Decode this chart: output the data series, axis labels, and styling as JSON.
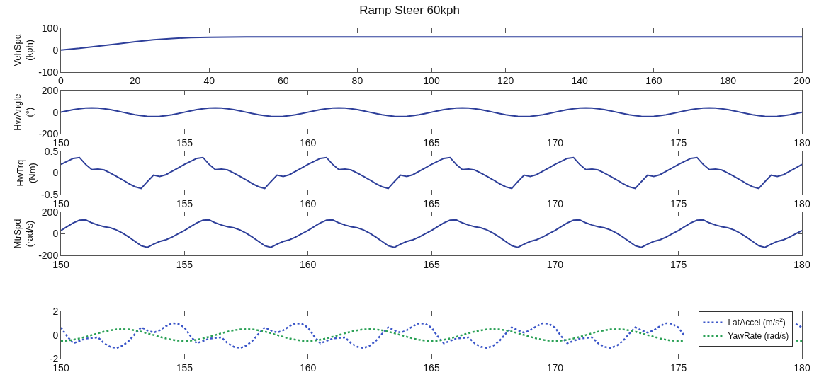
{
  "chart_data": [
    {
      "type": "line",
      "title": "Ramp Steer 60kph",
      "ylabel": "VehSpd\n(kph)",
      "line_style": "solid",
      "legend": false,
      "grid": false,
      "x": [
        0,
        5,
        10,
        15,
        20,
        25,
        30,
        35,
        40,
        50,
        60,
        80,
        100,
        120,
        140,
        160,
        180,
        200
      ],
      "series": [
        {
          "color": "#2e3f9a",
          "values": [
            0,
            8,
            18,
            28,
            38,
            47,
            53,
            57,
            59,
            60,
            60,
            60,
            60,
            60,
            60,
            60,
            60,
            60
          ]
        }
      ],
      "xlim": [
        0,
        200
      ],
      "xticks": [
        0,
        20,
        40,
        60,
        80,
        100,
        120,
        140,
        160,
        180,
        200
      ],
      "ylim": [
        -100,
        100
      ],
      "yticks": [
        -100,
        0,
        100
      ]
    },
    {
      "type": "line",
      "ylabel": "HwAngle\n(°)",
      "line_style": "solid",
      "legend": false,
      "grid": false,
      "x": [
        150,
        150.25,
        150.5,
        150.75,
        151,
        151.25,
        151.5,
        151.75,
        152,
        152.25,
        152.5,
        152.75,
        153,
        153.25,
        153.5,
        153.75,
        154,
        154.25,
        154.5,
        154.75,
        155,
        155.25,
        155.5,
        155.75,
        156,
        156.25,
        156.5,
        156.75,
        157,
        157.25,
        157.5,
        157.75,
        158,
        158.25,
        158.5,
        158.75,
        159,
        159.25,
        159.5,
        159.75,
        160,
        160.25,
        160.5,
        160.75,
        161,
        161.25,
        161.5,
        161.75,
        162,
        162.25,
        162.5,
        162.75,
        163,
        163.25,
        163.5,
        163.75,
        164,
        164.25,
        164.5,
        164.75,
        165,
        165.25,
        165.5,
        165.75,
        166,
        166.25,
        166.5,
        166.75,
        167,
        167.25,
        167.5,
        167.75,
        168,
        168.25,
        168.5,
        168.75,
        169,
        169.25,
        169.5,
        169.75,
        170,
        170.25,
        170.5,
        170.75,
        171,
        171.25,
        171.5,
        171.75,
        172,
        172.25,
        172.5,
        172.75,
        173,
        173.25,
        173.5,
        173.75,
        174,
        174.25,
        174.5,
        174.75,
        175,
        175.25,
        175.5,
        175.75,
        176,
        176.25,
        176.5,
        176.75,
        177,
        177.25,
        177.5,
        177.75,
        178,
        178.25,
        178.5,
        178.75,
        179,
        179.25,
        179.5,
        179.75,
        180
      ],
      "series": [
        {
          "color": "#2e3f9a",
          "values": [
            0,
            12,
            24,
            32,
            38,
            40,
            38,
            32,
            24,
            12,
            0,
            -12,
            -24,
            -32,
            -38,
            -40,
            -38,
            -32,
            -24,
            -12,
            0,
            12,
            24,
            32,
            38,
            40,
            38,
            32,
            24,
            12,
            0,
            -12,
            -24,
            -32,
            -38,
            -40,
            -38,
            -32,
            -24,
            -12,
            0,
            12,
            24,
            32,
            38,
            40,
            38,
            32,
            24,
            12,
            0,
            -12,
            -24,
            -32,
            -38,
            -40,
            -38,
            -32,
            -24,
            -12,
            0,
            12,
            24,
            32,
            38,
            40,
            38,
            32,
            24,
            12,
            0,
            -12,
            -24,
            -32,
            -38,
            -40,
            -38,
            -32,
            -24,
            -12,
            0,
            12,
            24,
            32,
            38,
            40,
            38,
            32,
            24,
            12,
            0,
            -12,
            -24,
            -32,
            -38,
            -40,
            -38,
            -32,
            -24,
            -12,
            0,
            12,
            24,
            32,
            38,
            40,
            38,
            32,
            24,
            12,
            0,
            -12,
            -24,
            -32,
            -38,
            -40,
            -38,
            -32,
            -24,
            -12,
            0
          ]
        }
      ],
      "xlim": [
        150,
        180
      ],
      "xticks": [
        150,
        155,
        160,
        165,
        170,
        175,
        180
      ],
      "ylim": [
        -200,
        200
      ],
      "yticks": [
        -200,
        0,
        200
      ]
    },
    {
      "type": "line",
      "ylabel": "HwTrq\n(Nm)",
      "line_style": "solid",
      "legend": false,
      "grid": false,
      "x": [
        150,
        150.25,
        150.5,
        150.75,
        151,
        151.25,
        151.5,
        151.75,
        152,
        152.25,
        152.5,
        152.75,
        153,
        153.25,
        153.5,
        153.75,
        154,
        154.25,
        154.5,
        154.75,
        155,
        155.25,
        155.5,
        155.75,
        156,
        156.25,
        156.5,
        156.75,
        157,
        157.25,
        157.5,
        157.75,
        158,
        158.25,
        158.5,
        158.75,
        159,
        159.25,
        159.5,
        159.75,
        160,
        160.25,
        160.5,
        160.75,
        161,
        161.25,
        161.5,
        161.75,
        162,
        162.25,
        162.5,
        162.75,
        163,
        163.25,
        163.5,
        163.75,
        164,
        164.25,
        164.5,
        164.75,
        165,
        165.25,
        165.5,
        165.75,
        166,
        166.25,
        166.5,
        166.75,
        167,
        167.25,
        167.5,
        167.75,
        168,
        168.25,
        168.5,
        168.75,
        169,
        169.25,
        169.5,
        169.75,
        170,
        170.25,
        170.5,
        170.75,
        171,
        171.25,
        171.5,
        171.75,
        172,
        172.25,
        172.5,
        172.75,
        173,
        173.25,
        173.5,
        173.75,
        174,
        174.25,
        174.5,
        174.75,
        175,
        175.25,
        175.5,
        175.75,
        176,
        176.25,
        176.5,
        176.75,
        177,
        177.25,
        177.5,
        177.75,
        178,
        178.25,
        178.5,
        178.75,
        179,
        179.25,
        179.5,
        179.75,
        180
      ],
      "series": [
        {
          "color": "#2e3f9a",
          "values": [
            0.2,
            0.27,
            0.34,
            0.36,
            0.2,
            0.08,
            0.09,
            0.07,
            0.0,
            -0.08,
            -0.16,
            -0.25,
            -0.32,
            -0.36,
            -0.2,
            -0.05,
            -0.08,
            -0.04,
            0.04,
            0.12,
            0.2,
            0.27,
            0.34,
            0.36,
            0.2,
            0.08,
            0.09,
            0.07,
            0.0,
            -0.08,
            -0.16,
            -0.25,
            -0.32,
            -0.36,
            -0.2,
            -0.05,
            -0.08,
            -0.04,
            0.04,
            0.12,
            0.2,
            0.27,
            0.34,
            0.36,
            0.2,
            0.08,
            0.09,
            0.07,
            0.0,
            -0.08,
            -0.16,
            -0.25,
            -0.32,
            -0.36,
            -0.2,
            -0.05,
            -0.08,
            -0.04,
            0.04,
            0.12,
            0.2,
            0.27,
            0.34,
            0.36,
            0.2,
            0.08,
            0.09,
            0.07,
            0.0,
            -0.08,
            -0.16,
            -0.25,
            -0.32,
            -0.36,
            -0.2,
            -0.05,
            -0.08,
            -0.04,
            0.04,
            0.12,
            0.2,
            0.27,
            0.34,
            0.36,
            0.2,
            0.08,
            0.09,
            0.07,
            0.0,
            -0.08,
            -0.16,
            -0.25,
            -0.32,
            -0.36,
            -0.2,
            -0.05,
            -0.08,
            -0.04,
            0.04,
            0.12,
            0.2,
            0.27,
            0.34,
            0.36,
            0.2,
            0.08,
            0.09,
            0.07,
            0.0,
            -0.08,
            -0.16,
            -0.25,
            -0.32,
            -0.36,
            -0.2,
            -0.05,
            -0.08,
            -0.04,
            0.04,
            0.12,
            0.2
          ]
        }
      ],
      "xlim": [
        150,
        180
      ],
      "xticks": [
        150,
        155,
        160,
        165,
        170,
        175,
        180
      ],
      "ylim": [
        -0.5,
        0.5
      ],
      "yticks": [
        -0.5,
        0,
        0.5
      ]
    },
    {
      "type": "line",
      "ylabel": "MtrSpd\n(rad/s)",
      "line_style": "solid",
      "legend": false,
      "grid": false,
      "x": [
        150,
        150.25,
        150.5,
        150.75,
        151,
        151.25,
        151.5,
        151.75,
        152,
        152.25,
        152.5,
        152.75,
        153,
        153.25,
        153.5,
        153.75,
        154,
        154.25,
        154.5,
        154.75,
        155,
        155.25,
        155.5,
        155.75,
        156,
        156.25,
        156.5,
        156.75,
        157,
        157.25,
        157.5,
        157.75,
        158,
        158.25,
        158.5,
        158.75,
        159,
        159.25,
        159.5,
        159.75,
        160,
        160.25,
        160.5,
        160.75,
        161,
        161.25,
        161.5,
        161.75,
        162,
        162.25,
        162.5,
        162.75,
        163,
        163.25,
        163.5,
        163.75,
        164,
        164.25,
        164.5,
        164.75,
        165,
        165.25,
        165.5,
        165.75,
        166,
        166.25,
        166.5,
        166.75,
        167,
        167.25,
        167.5,
        167.75,
        168,
        168.25,
        168.5,
        168.75,
        169,
        169.25,
        169.5,
        169.75,
        170,
        170.25,
        170.5,
        170.75,
        171,
        171.25,
        171.5,
        171.75,
        172,
        172.25,
        172.5,
        172.75,
        173,
        173.25,
        173.5,
        173.75,
        174,
        174.25,
        174.5,
        174.75,
        175,
        175.25,
        175.5,
        175.75,
        176,
        176.25,
        176.5,
        176.75,
        177,
        177.25,
        177.5,
        177.75,
        178,
        178.25,
        178.5,
        178.75,
        179,
        179.25,
        179.5,
        179.75,
        180
      ],
      "series": [
        {
          "color": "#2e3f9a",
          "values": [
            30,
            65,
            100,
            125,
            128,
            100,
            80,
            65,
            55,
            35,
            5,
            -30,
            -70,
            -110,
            -125,
            -95,
            -70,
            -55,
            -30,
            0,
            30,
            65,
            100,
            125,
            128,
            100,
            80,
            65,
            55,
            35,
            5,
            -30,
            -70,
            -110,
            -125,
            -95,
            -70,
            -55,
            -30,
            0,
            30,
            65,
            100,
            125,
            128,
            100,
            80,
            65,
            55,
            35,
            5,
            -30,
            -70,
            -110,
            -125,
            -95,
            -70,
            -55,
            -30,
            0,
            30,
            65,
            100,
            125,
            128,
            100,
            80,
            65,
            55,
            35,
            5,
            -30,
            -70,
            -110,
            -125,
            -95,
            -70,
            -55,
            -30,
            0,
            30,
            65,
            100,
            125,
            128,
            100,
            80,
            65,
            55,
            35,
            5,
            -30,
            -70,
            -110,
            -125,
            -95,
            -70,
            -55,
            -30,
            0,
            30,
            65,
            100,
            125,
            128,
            100,
            80,
            65,
            55,
            35,
            5,
            -30,
            -70,
            -110,
            -125,
            -95,
            -70,
            -55,
            -30,
            0,
            30
          ]
        }
      ],
      "xlim": [
        150,
        180
      ],
      "xticks": [
        150,
        155,
        160,
        165,
        170,
        175,
        180
      ],
      "ylim": [
        -200,
        200
      ],
      "yticks": [
        -200,
        0,
        200
      ]
    },
    {
      "type": "line",
      "line_style": "dotted",
      "legend": "top right",
      "grid": false,
      "x": [
        150,
        150.25,
        150.5,
        150.75,
        151,
        151.25,
        151.5,
        151.75,
        152,
        152.25,
        152.5,
        152.75,
        153,
        153.25,
        153.5,
        153.75,
        154,
        154.25,
        154.5,
        154.75,
        155,
        155.25,
        155.5,
        155.75,
        156,
        156.25,
        156.5,
        156.75,
        157,
        157.25,
        157.5,
        157.75,
        158,
        158.25,
        158.5,
        158.75,
        159,
        159.25,
        159.5,
        159.75,
        160,
        160.25,
        160.5,
        160.75,
        161,
        161.25,
        161.5,
        161.75,
        162,
        162.25,
        162.5,
        162.75,
        163,
        163.25,
        163.5,
        163.75,
        164,
        164.25,
        164.5,
        164.75,
        165,
        165.25,
        165.5,
        165.75,
        166,
        166.25,
        166.5,
        166.75,
        167,
        167.25,
        167.5,
        167.75,
        168,
        168.25,
        168.5,
        168.75,
        169,
        169.25,
        169.5,
        169.75,
        170,
        170.25,
        170.5,
        170.75,
        171,
        171.25,
        171.5,
        171.75,
        172,
        172.25,
        172.5,
        172.75,
        173,
        173.25,
        173.5,
        173.75,
        174,
        174.25,
        174.5,
        174.75,
        175,
        175.25,
        175.5,
        175.75,
        176,
        176.25,
        176.5,
        176.75,
        177,
        177.25,
        177.5,
        177.75,
        178,
        178.25,
        178.5,
        178.75,
        179,
        179.25,
        179.5,
        179.75,
        180
      ],
      "series": [
        {
          "name": "LatAccel (m/s$^{2}$)",
          "color": "#3a55c8",
          "values": [
            0.64,
            -0.1,
            -0.7,
            -0.5,
            -0.3,
            -0.25,
            -0.2,
            -0.7,
            -1.0,
            -1.1,
            -0.9,
            -0.5,
            0.1,
            0.65,
            0.4,
            0.2,
            0.4,
            0.75,
            1.0,
            0.95,
            0.64,
            -0.1,
            -0.7,
            -0.5,
            -0.3,
            -0.25,
            -0.2,
            -0.7,
            -1.0,
            -1.1,
            -0.9,
            -0.5,
            0.1,
            0.65,
            0.4,
            0.2,
            0.4,
            0.75,
            1.0,
            0.95,
            0.64,
            -0.1,
            -0.7,
            -0.5,
            -0.3,
            -0.25,
            -0.2,
            -0.7,
            -1.0,
            -1.1,
            -0.9,
            -0.5,
            0.1,
            0.65,
            0.4,
            0.2,
            0.4,
            0.75,
            1.0,
            0.95,
            0.64,
            -0.1,
            -0.7,
            -0.5,
            -0.3,
            -0.25,
            -0.2,
            -0.7,
            -1.0,
            -1.1,
            -0.9,
            -0.5,
            0.1,
            0.65,
            0.4,
            0.2,
            0.4,
            0.75,
            1.0,
            0.95,
            0.64,
            -0.1,
            -0.7,
            -0.5,
            -0.3,
            -0.25,
            -0.2,
            -0.7,
            -1.0,
            -1.1,
            -0.9,
            -0.5,
            0.1,
            0.65,
            0.4,
            0.2,
            0.4,
            0.75,
            1.0,
            0.95,
            0.64,
            -0.1,
            null,
            null,
            null,
            null,
            null,
            null,
            null,
            null,
            null,
            null,
            null,
            null,
            null,
            null,
            null,
            null,
            null,
            0.95,
            0.64
          ]
        },
        {
          "name": "YawRate (rad/s)",
          "color": "#2aa055",
          "values": [
            -0.5,
            -0.48,
            -0.4,
            -0.29,
            -0.15,
            0,
            0.15,
            0.29,
            0.4,
            0.48,
            0.5,
            0.48,
            0.4,
            0.29,
            0.15,
            0,
            -0.15,
            -0.29,
            -0.4,
            -0.48,
            -0.5,
            -0.48,
            -0.4,
            -0.29,
            -0.15,
            0,
            0.15,
            0.29,
            0.4,
            0.48,
            0.5,
            0.48,
            0.4,
            0.29,
            0.15,
            0,
            -0.15,
            -0.29,
            -0.4,
            -0.48,
            -0.5,
            -0.48,
            -0.4,
            -0.29,
            -0.15,
            0,
            0.15,
            0.29,
            0.4,
            0.48,
            0.5,
            0.48,
            0.4,
            0.29,
            0.15,
            0,
            -0.15,
            -0.29,
            -0.4,
            -0.48,
            -0.5,
            -0.48,
            -0.4,
            -0.29,
            -0.15,
            0,
            0.15,
            0.29,
            0.4,
            0.48,
            0.5,
            0.48,
            0.4,
            0.29,
            0.15,
            0,
            -0.15,
            -0.29,
            -0.4,
            -0.48,
            -0.5,
            -0.48,
            -0.4,
            -0.29,
            -0.15,
            0,
            0.15,
            0.29,
            0.4,
            0.48,
            0.5,
            0.48,
            0.4,
            0.29,
            0.15,
            0,
            -0.15,
            -0.29,
            -0.4,
            -0.48,
            -0.5,
            -0.48,
            null,
            null,
            null,
            null,
            null,
            null,
            null,
            null,
            null,
            null,
            null,
            null,
            null,
            null,
            null,
            null,
            null,
            -0.48,
            -0.5
          ]
        }
      ],
      "xlim": [
        150,
        180
      ],
      "xticks": [
        150,
        155,
        160,
        165,
        170,
        175,
        180
      ],
      "ylim": [
        -2,
        2
      ],
      "yticks": [
        -2,
        0,
        2
      ]
    }
  ]
}
